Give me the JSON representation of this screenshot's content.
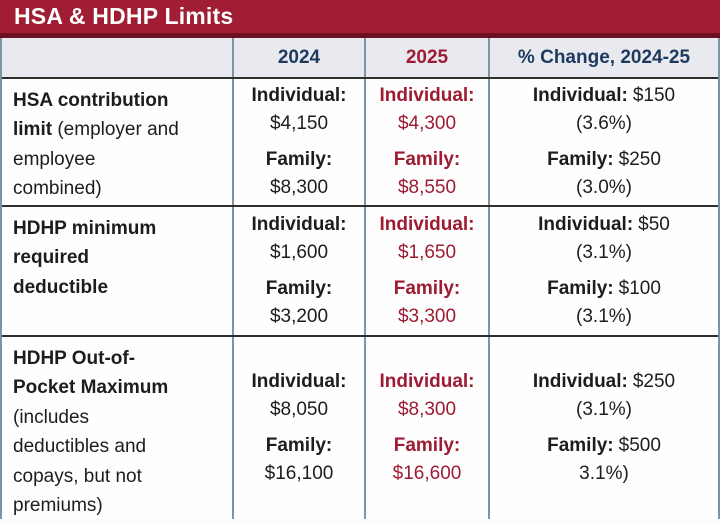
{
  "title": "HSA & HDHP Limits",
  "colors": {
    "title_bg": "#a01d33",
    "title_underline": "#6b1123",
    "header_bg": "#e9eaef",
    "navy_text": "#1e3a5f",
    "maroon_text": "#9e1b32",
    "body_text": "#1d1d1d",
    "grid_vertical": "#7f93a3",
    "grid_horizontal": "#2e2e2e"
  },
  "header": {
    "col_label": "",
    "col_2024": "2024",
    "col_2025": "2025",
    "col_change": "% Change, 2024-25"
  },
  "rows": [
    {
      "label_bold": "HSA contribution\nlimit",
      "label_note": " (employer and\nemployee\ncombined)",
      "c2024": {
        "ind_label": "Individual:",
        "ind": "$4,150",
        "fam_label": "Family:",
        "fam": "$8,300"
      },
      "c2025": {
        "ind_label": "Individual:",
        "ind": "$4,300",
        "fam_label": "Family:",
        "fam": "$8,550"
      },
      "change": {
        "ind_label": "Individual:",
        "ind": "$150",
        "ind_pct": "(3.6%)",
        "fam_label": "Family:",
        "fam": "$250",
        "fam_pct": "(3.0%)"
      }
    },
    {
      "label_bold": "HDHP minimum\nrequired\ndeductible",
      "label_note": "",
      "c2024": {
        "ind_label": "Individual:",
        "ind": "$1,600",
        "fam_label": "Family:",
        "fam": "$3,200"
      },
      "c2025": {
        "ind_label": "Individual:",
        "ind": "$1,650",
        "fam_label": "Family:",
        "fam": "$3,300"
      },
      "change": {
        "ind_label": "Individual:",
        "ind": "$50",
        "ind_pct": "(3.1%)",
        "fam_label": "Family:",
        "fam": "$100",
        "fam_pct": "(3.1%)"
      }
    },
    {
      "label_bold": "HDHP Out-of-\nPocket Maximum",
      "label_note": "\n(includes\ndeductibles and\ncopays, but not\npremiums)",
      "c2024": {
        "ind_label": "Individual:",
        "ind": "$8,050",
        "fam_label": "Family:",
        "fam": "$16,100"
      },
      "c2025": {
        "ind_label": "Individual:",
        "ind": "$8,300",
        "fam_label": "Family:",
        "fam": "$16,600"
      },
      "change": {
        "ind_label": "Individual:",
        "ind": "$250",
        "ind_pct": "(3.1%)",
        "fam_label": "Family:",
        "fam": "$500",
        "fam_pct": "3.1%)"
      }
    }
  ],
  "chart_data": {
    "type": "table",
    "title": "HSA & HDHP Limits",
    "columns": [
      "",
      "2024",
      "2025",
      "% Change, 2024-25"
    ],
    "rows": [
      [
        "HSA contribution limit (employer and employee combined)",
        "Individual: $4,150; Family: $8,300",
        "Individual: $4,300; Family: $8,550",
        "Individual: $150 (3.6%); Family: $250 (3.0%)"
      ],
      [
        "HDHP minimum required deductible",
        "Individual: $1,600; Family: $3,200",
        "Individual: $1,650; Family: $3,300",
        "Individual: $50 (3.1%); Family: $100 (3.1%)"
      ],
      [
        "HDHP Out-of-Pocket Maximum (includes deductibles and copays, but not premiums)",
        "Individual: $8,050; Family: $16,100",
        "Individual: $8,300; Family: $16,600",
        "Individual: $250 (3.1%); Family: $500 3.1%)"
      ]
    ]
  }
}
